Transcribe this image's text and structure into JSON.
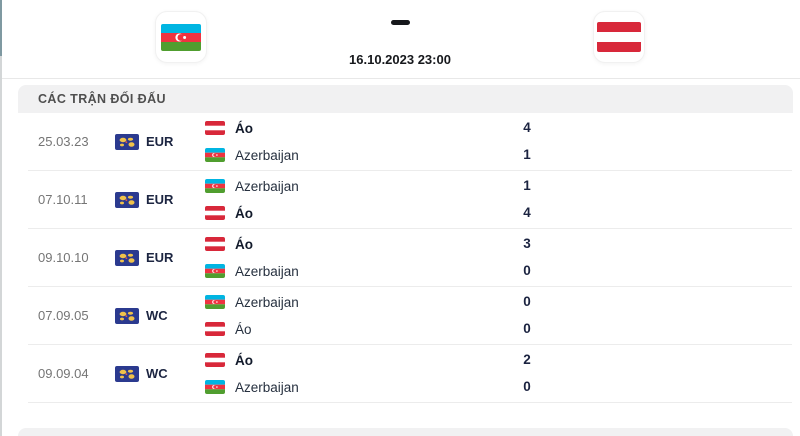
{
  "header": {
    "home_team_flag": "azerbaijan-flag",
    "away_team_flag": "austria-flag",
    "score_separator": "-",
    "kickoff_datetime": "16.10.2023 23:00"
  },
  "h2h_section": {
    "title": "CÁC TRẬN ĐỐI ĐẤU",
    "matches": [
      {
        "date": "25.03.23",
        "competition": "EUR",
        "lines": [
          {
            "flag": "austria",
            "team": "Áo",
            "score": "4",
            "winner": true
          },
          {
            "flag": "azerbaijan",
            "team": "Azerbaijan",
            "score": "1",
            "winner": false
          }
        ]
      },
      {
        "date": "07.10.11",
        "competition": "EUR",
        "lines": [
          {
            "flag": "azerbaijan",
            "team": "Azerbaijan",
            "score": "1",
            "winner": false
          },
          {
            "flag": "austria",
            "team": "Áo",
            "score": "4",
            "winner": true
          }
        ]
      },
      {
        "date": "09.10.10",
        "competition": "EUR",
        "lines": [
          {
            "flag": "austria",
            "team": "Áo",
            "score": "3",
            "winner": true
          },
          {
            "flag": "azerbaijan",
            "team": "Azerbaijan",
            "score": "0",
            "winner": false
          }
        ]
      },
      {
        "date": "07.09.05",
        "competition": "WC",
        "lines": [
          {
            "flag": "azerbaijan",
            "team": "Azerbaijan",
            "score": "0",
            "winner": false
          },
          {
            "flag": "austria",
            "team": "Áo",
            "score": "0",
            "winner": false
          }
        ]
      },
      {
        "date": "09.09.04",
        "competition": "WC",
        "lines": [
          {
            "flag": "austria",
            "team": "Áo",
            "score": "2",
            "winner": true
          },
          {
            "flag": "azerbaijan",
            "team": "Azerbaijan",
            "score": "0",
            "winner": false
          }
        ]
      }
    ]
  },
  "colors": {
    "austria_red": "#d8283a",
    "azerbaijan_blue": "#00b5e2",
    "azerbaijan_red": "#ef3340",
    "azerbaijan_green": "#509e2f",
    "competition_badge_blue": "#2b3a8f",
    "competition_badge_yellow": "#f0c24a",
    "section_header_bg": "#f1f1f2",
    "text_dark": "#1c2541",
    "text_muted": "#757575"
  }
}
